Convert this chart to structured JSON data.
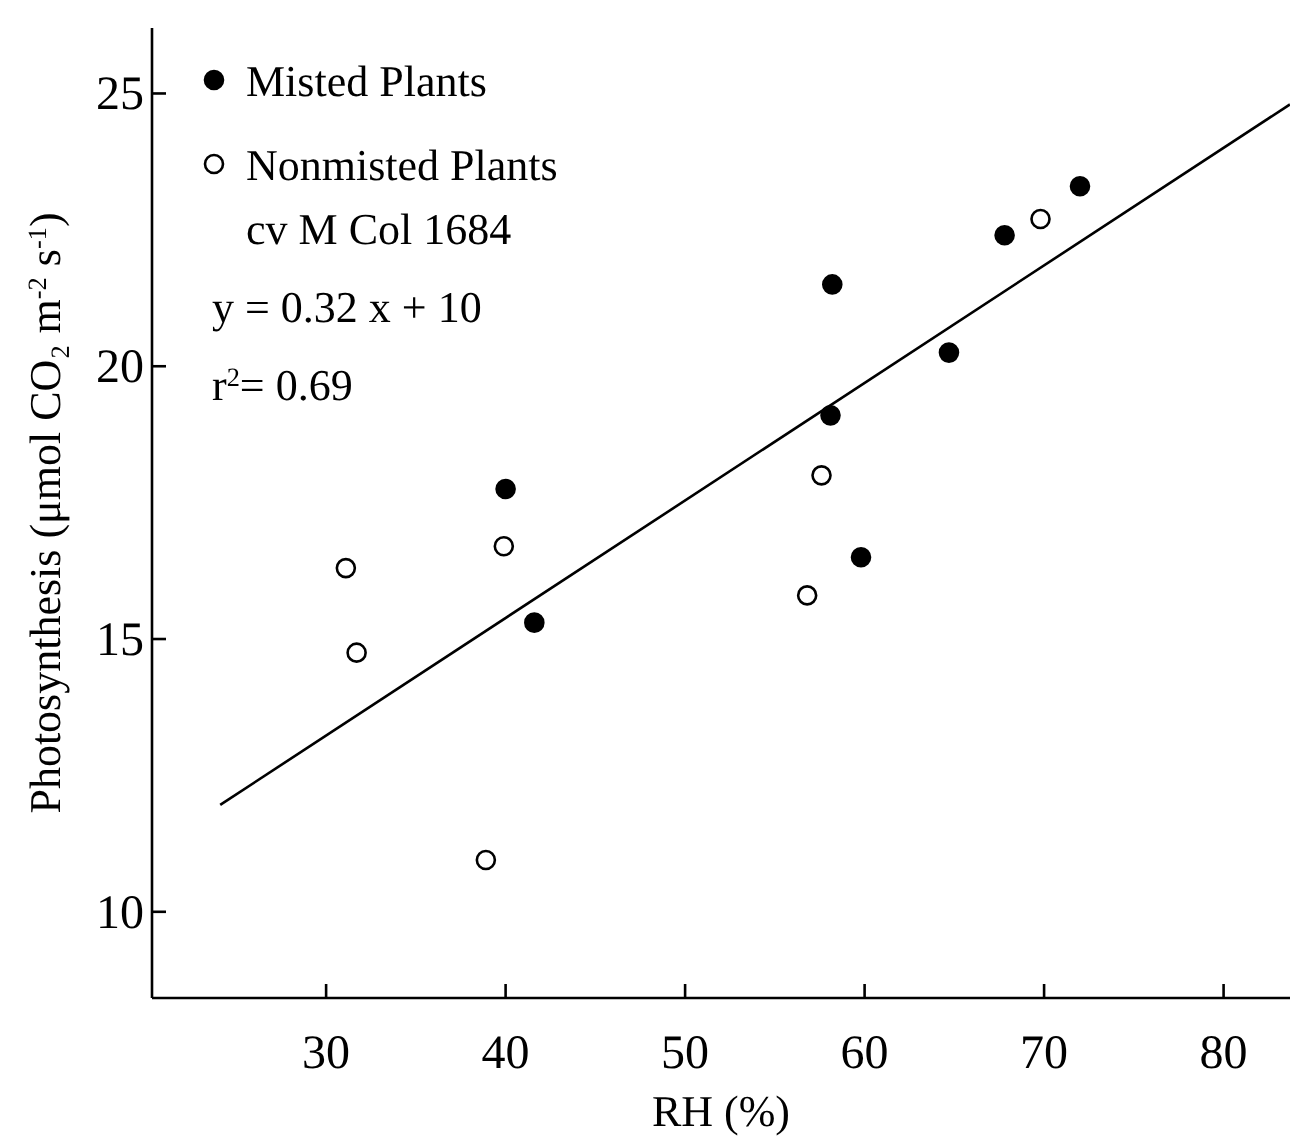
{
  "chart_data": {
    "type": "scatter",
    "xlabel": "RH (%)",
    "ylabel": "Photosynthesis (μmol CO₂ m$^{-2}$ s$^{-1}$)",
    "xlim": [
      20.3,
      83.7
    ],
    "ylim": [
      8.42,
      26.2
    ],
    "xticks": [
      30,
      40,
      50,
      60,
      70,
      80
    ],
    "yticks": [
      10,
      15,
      20,
      25
    ],
    "grid": false,
    "legend": "top left",
    "marker": "circle",
    "annotations": [
      "cv M Col 1684",
      "y = 0.32 x + 10",
      "r$^{2}$= 0.69"
    ],
    "series": [
      {
        "name": "Misted Plants",
        "color": "#000000",
        "x": [
          40,
          41.6,
          58.2,
          58.1,
          59.8,
          64.7,
          67.8,
          72
        ],
        "values": [
          17.75,
          15.3,
          21.5,
          19.1,
          16.5,
          20.25,
          22.4,
          23.3
        ]
      },
      {
        "name": "Nonmisted Plants",
        "color": "#ffffff",
        "x": [
          31.1,
          31.7,
          38.9,
          39.9,
          56.8,
          57.6,
          69.8
        ],
        "values": [
          16.3,
          14.75,
          10.95,
          16.7,
          15.8,
          18.0,
          22.7
        ]
      },
      {
        "type": "line",
        "color": "#000000",
        "marker": "none",
        "line_style": "solid",
        "x": [
          24.1,
          83.7
        ],
        "values": [
          11.96,
          24.8
        ]
      }
    ]
  }
}
